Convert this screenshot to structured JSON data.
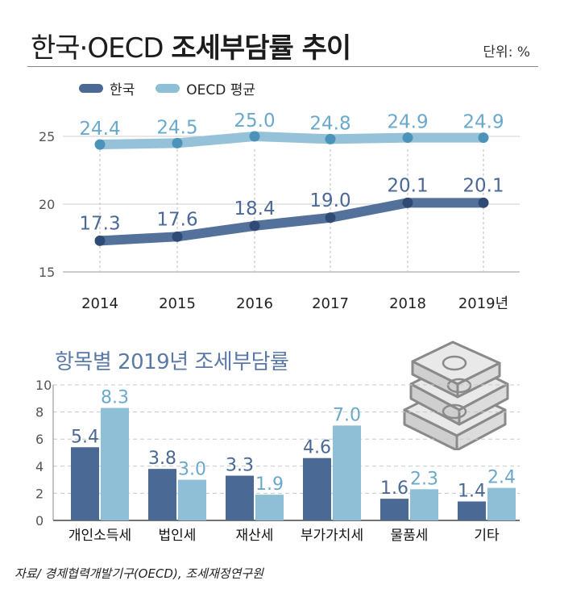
{
  "header": {
    "title_light": "한국·OECD",
    "title_bold": "조세부담률 추이",
    "unit": "단위: %"
  },
  "source": "자료/ 경제협력개발기구(OECD), 조세재정연구원",
  "colors": {
    "korea": "#4a6995",
    "korea_dot": "#2e4a75",
    "oecd": "#8fbfd6",
    "oecd_dot": "#4b93b8",
    "korea_label": "#4a6995",
    "oecd_label": "#6aa9cc",
    "subtitle": "#5b79a7"
  },
  "chart_data": [
    {
      "type": "line",
      "x": [
        "2014",
        "2015",
        "2016",
        "2017",
        "2018",
        "2019년"
      ],
      "series": [
        {
          "name": "한국",
          "values": [
            17.3,
            17.6,
            18.4,
            19.0,
            20.1,
            20.1
          ]
        },
        {
          "name": "OECD 평균",
          "values": [
            24.4,
            24.5,
            25.0,
            24.8,
            24.9,
            24.9
          ]
        }
      ],
      "yticks": [
        "15",
        "20",
        "25"
      ],
      "ylim": [
        15,
        27
      ],
      "legend": "top-left",
      "grid": true
    },
    {
      "type": "bar",
      "title": "항목별 2019년 조세부담률",
      "categories": [
        "개인소득세",
        "법인세",
        "재산세",
        "부가가치세",
        "물품세",
        "기타"
      ],
      "series": [
        {
          "name": "한국",
          "values": [
            5.4,
            3.8,
            3.3,
            4.6,
            1.6,
            1.4
          ]
        },
        {
          "name": "OECD 평균",
          "values": [
            8.3,
            3.0,
            1.9,
            7.0,
            2.3,
            2.4
          ]
        }
      ],
      "yticks": [
        "0",
        "2",
        "4",
        "6",
        "8",
        "10"
      ],
      "ylim": [
        0,
        10
      ],
      "grid": true
    }
  ]
}
